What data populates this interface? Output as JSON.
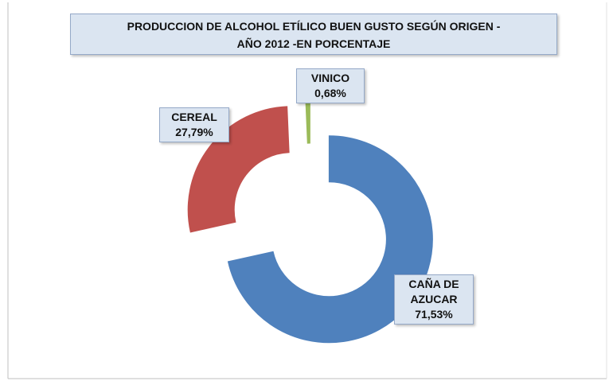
{
  "chart_data": {
    "type": "pie",
    "title": [
      "PRODUCCION DE ALCOHOL ETÍLICO BUEN GUSTO SEGÚN ORIGEN  -",
      "AÑO 2012 -EN PORCENTAJE"
    ],
    "categories": [
      "CAÑA DE AZUCAR",
      "CEREAL",
      "VINICO"
    ],
    "values": [
      71.53,
      27.79,
      0.68
    ],
    "value_labels": [
      "71,53%",
      "27,79%",
      "0,68%"
    ],
    "colors": [
      "#4f81bd",
      "#c0504d",
      "#9bbb59"
    ],
    "donut": true,
    "exploded": true
  }
}
